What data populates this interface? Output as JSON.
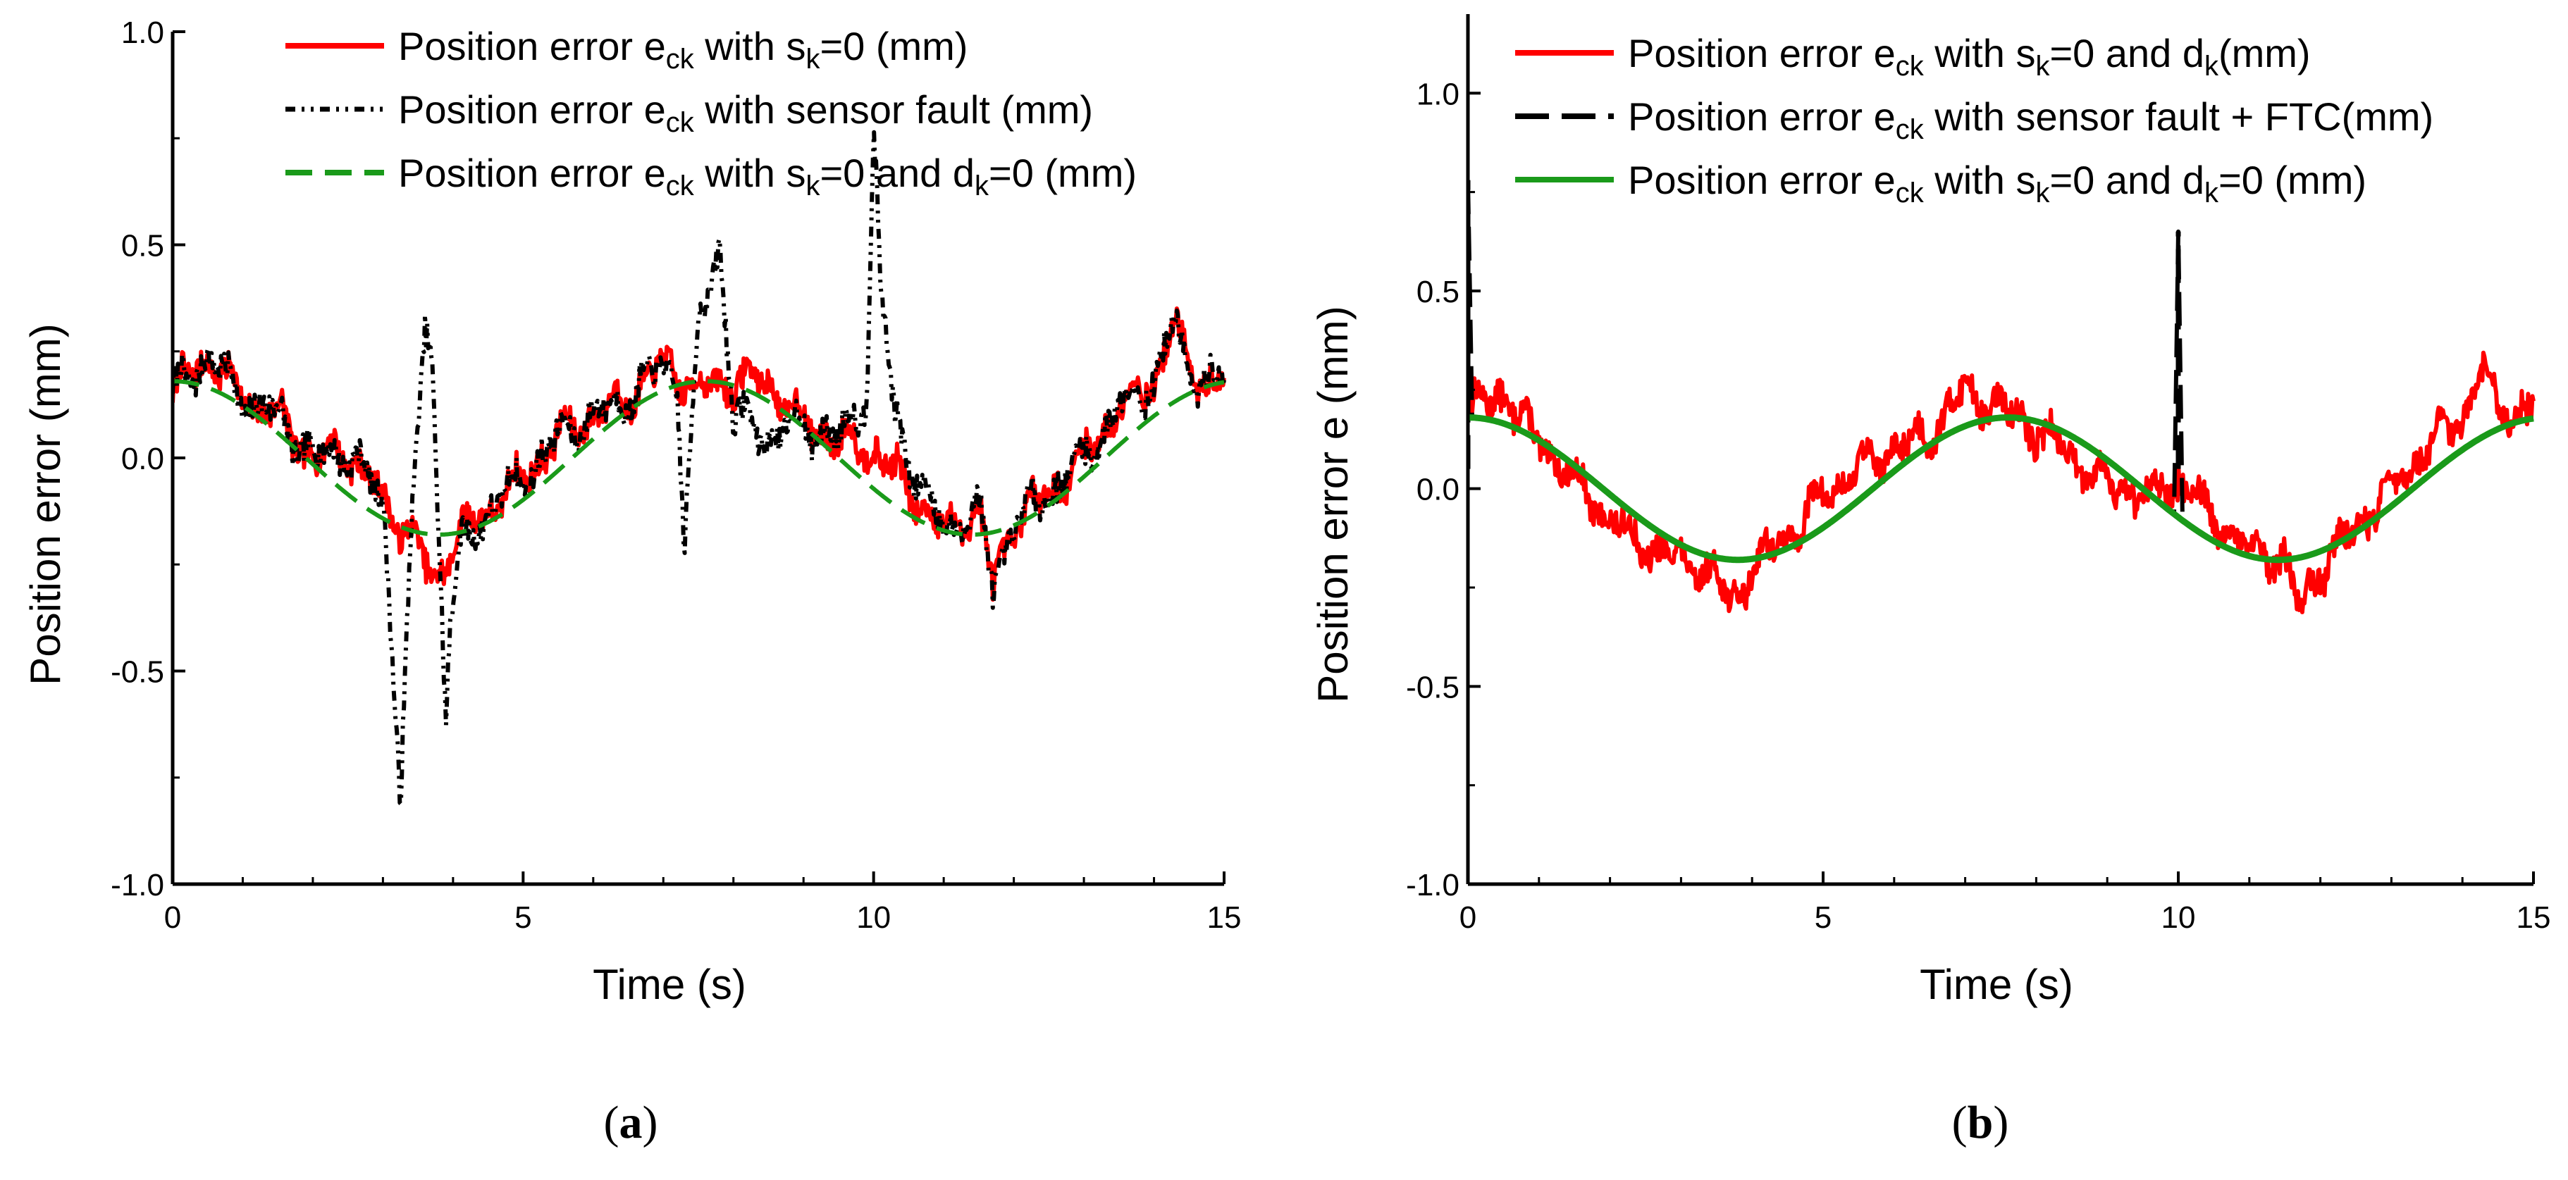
{
  "chart_data": [
    {
      "panel_label_text": "a",
      "type": "line",
      "xlabel": "Time (s)",
      "ylabel": "Position error (mm)",
      "xlim": [
        0,
        15
      ],
      "ylim": [
        -1.0,
        1.0
      ],
      "x_ticks": [
        "0",
        "5",
        "10",
        "15"
      ],
      "y_ticks": [
        "-1.0",
        "-0.5",
        "0.0",
        "0.5",
        "1.0"
      ],
      "legend_position": "top-right",
      "series": [
        {
          "name": "Position error e_ck with s_k=0 (mm)",
          "legend_parts": {
            "pre": "Position error e",
            "sub1": "ck",
            "mid": " with s",
            "sub2": "k",
            "post": "=0 (mm)"
          },
          "color": "#ff0000",
          "style": "solid",
          "x": [
            0,
            0.5,
            1,
            1.5,
            2,
            2.5,
            3,
            3.5,
            3.7,
            4,
            4.5,
            5,
            5.5,
            6,
            6.5,
            7,
            7.5,
            8,
            8.5,
            9,
            9.5,
            10,
            10.5,
            11,
            11.5,
            11.7,
            12,
            12.5,
            13,
            13.5,
            14,
            14.3,
            14.5,
            15
          ],
          "y": [
            0.15,
            0.24,
            0.14,
            0.1,
            0.0,
            0.02,
            -0.1,
            -0.2,
            -0.3,
            -0.2,
            -0.12,
            -0.05,
            0.05,
            0.1,
            0.14,
            0.22,
            0.16,
            0.18,
            0.18,
            0.08,
            0.04,
            0.02,
            -0.07,
            -0.17,
            -0.12,
            -0.3,
            -0.15,
            -0.08,
            0.0,
            0.12,
            0.18,
            0.32,
            0.2,
            0.17
          ]
        },
        {
          "name": "Position error e_ck with sensor fault (mm)",
          "legend_parts": {
            "pre": "Position error e",
            "sub1": "ck",
            "mid": " with sensor fault (mm)",
            "sub2": "",
            "post": ""
          },
          "color": "#000000",
          "style": "dashdotdot",
          "x": [
            0,
            0.5,
            1,
            1.5,
            2,
            2.5,
            3,
            3.1,
            3.25,
            3.4,
            3.6,
            3.7,
            3.8,
            3.9,
            3.95,
            4.1,
            4.5,
            5,
            5.5,
            6,
            6.5,
            7,
            7.2,
            7.3,
            7.5,
            7.8,
            8,
            8.5,
            9,
            9.5,
            9.9,
            10,
            10.1,
            10.3,
            10.5,
            11,
            11.5,
            11.7,
            12,
            12.5,
            13,
            13.5,
            14,
            14.3,
            14.5,
            15
          ],
          "y": [
            0.15,
            0.24,
            0.14,
            0.1,
            0.0,
            0.02,
            -0.1,
            -0.35,
            -0.78,
            -0.2,
            0.32,
            0.25,
            -0.2,
            -0.6,
            -0.4,
            -0.22,
            -0.12,
            -0.05,
            0.05,
            0.1,
            0.14,
            0.22,
            0.18,
            -0.2,
            0.3,
            0.5,
            0.1,
            0.05,
            0.08,
            0.04,
            0.15,
            0.77,
            0.4,
            0.1,
            0.0,
            -0.17,
            -0.12,
            -0.3,
            -0.15,
            -0.08,
            0.0,
            0.12,
            0.18,
            0.32,
            0.2,
            0.17
          ]
        },
        {
          "name": "Position error e_ck with s_k=0 and d_k=0 (mm)",
          "legend_parts": {
            "pre": "Position error e",
            "sub1": "ck",
            "mid": " with s",
            "sub2": "k",
            "post": "=0 and d",
            "sub3": "k",
            "post2": "=0 (mm)"
          },
          "color": "#1a9a1a",
          "style": "dash",
          "function": "0.18*cos(2*pi*t/7.6)"
        }
      ]
    },
    {
      "panel_label_text": "b",
      "type": "line",
      "xlabel": "Time (s)",
      "ylabel": "Position error e (mm)",
      "xlim": [
        0,
        15
      ],
      "ylim": [
        -1.0,
        1.2
      ],
      "x_ticks": [
        "0",
        "5",
        "10",
        "15"
      ],
      "y_ticks": [
        "-1.0",
        "-0.5",
        "0.0",
        "0.5",
        "1.0"
      ],
      "legend_position": "top-right",
      "series": [
        {
          "name": "Position error e_ck with s_k=0 and d_k(mm)",
          "legend_parts": {
            "pre": "Position error e",
            "sub1": "ck",
            "mid": " with s",
            "sub2": "k",
            "post": "=0 and d",
            "sub3": "k",
            "post2": "(mm)"
          },
          "color": "#ff0000",
          "style": "solid",
          "x": [
            0,
            0.5,
            1,
            1.5,
            2,
            2.5,
            3,
            3.5,
            3.7,
            4,
            4.5,
            5,
            5.5,
            6,
            6.5,
            7,
            7.5,
            8,
            8.5,
            9,
            9.5,
            10,
            10.5,
            11,
            11.5,
            11.7,
            12,
            12.5,
            13,
            13.5,
            14,
            14.3,
            14.5,
            15
          ],
          "y": [
            0.2,
            0.24,
            0.12,
            0.02,
            -0.08,
            -0.15,
            -0.18,
            -0.22,
            -0.3,
            -0.2,
            -0.12,
            -0.02,
            0.05,
            0.1,
            0.14,
            0.25,
            0.2,
            0.15,
            0.08,
            0.02,
            -0.02,
            0.02,
            -0.08,
            -0.16,
            -0.18,
            -0.3,
            -0.2,
            -0.1,
            0.0,
            0.1,
            0.18,
            0.3,
            0.2,
            0.2
          ]
        },
        {
          "name": "Position error e_ck with sensor fault + FTC(mm)",
          "legend_parts": {
            "pre": "Position error e",
            "sub1": "ck",
            "mid": " with sensor fault + FTC(mm)",
            "sub2": "",
            "post": ""
          },
          "color": "#000000",
          "style": "longdash",
          "function": "0.18*cos(2*pi*(t-7.6)/7.6)",
          "spikes": [
            {
              "t": 0.0,
              "peak": 0.78
            },
            {
              "t": 10.0,
              "peak": 0.65
            }
          ]
        },
        {
          "name": "Position error e_ck with s_k=0 and d_k=0 (mm)",
          "legend_parts": {
            "pre": "Position error e",
            "sub1": "ck",
            "mid": " with s",
            "sub2": "k",
            "post": "=0 and d",
            "sub3": "k",
            "post2": "=0 (mm)"
          },
          "color": "#1a9a1a",
          "style": "solid",
          "function": "0.18*cos(2*pi*(t-7.6)/7.6)"
        }
      ]
    }
  ]
}
